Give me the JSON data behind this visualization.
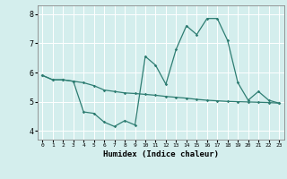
{
  "line1_x": [
    0,
    1,
    2,
    3,
    4,
    5,
    6,
    7,
    8,
    9,
    10,
    11,
    12,
    13,
    14,
    15,
    16,
    17,
    18,
    19,
    20,
    21,
    22,
    23
  ],
  "line1_y": [
    5.9,
    5.75,
    5.75,
    5.7,
    5.65,
    5.55,
    5.4,
    5.35,
    5.3,
    5.28,
    5.25,
    5.22,
    5.18,
    5.15,
    5.12,
    5.08,
    5.05,
    5.03,
    5.01,
    5.0,
    4.99,
    4.98,
    4.97,
    4.95
  ],
  "line2_x": [
    0,
    1,
    2,
    3,
    4,
    5,
    6,
    7,
    8,
    9,
    10,
    11,
    12,
    13,
    14,
    15,
    16,
    17,
    18,
    19,
    20,
    21,
    22,
    23
  ],
  "line2_y": [
    5.9,
    5.75,
    5.75,
    5.7,
    4.65,
    4.6,
    4.3,
    4.15,
    4.35,
    4.2,
    6.55,
    6.25,
    5.6,
    6.8,
    7.6,
    7.3,
    7.85,
    7.85,
    7.1,
    5.65,
    5.05,
    5.35,
    5.05,
    4.95
  ],
  "line_color": "#2e7d72",
  "bg_color": "#d4eeed",
  "grid_color": "#b8d8d8",
  "xlabel": "Humidex (Indice chaleur)",
  "ylim": [
    3.7,
    8.3
  ],
  "xlim": [
    -0.5,
    23.5
  ],
  "yticks": [
    4,
    5,
    6,
    7,
    8
  ],
  "xticks": [
    0,
    1,
    2,
    3,
    4,
    5,
    6,
    7,
    8,
    9,
    10,
    11,
    12,
    13,
    14,
    15,
    16,
    17,
    18,
    19,
    20,
    21,
    22,
    23
  ]
}
